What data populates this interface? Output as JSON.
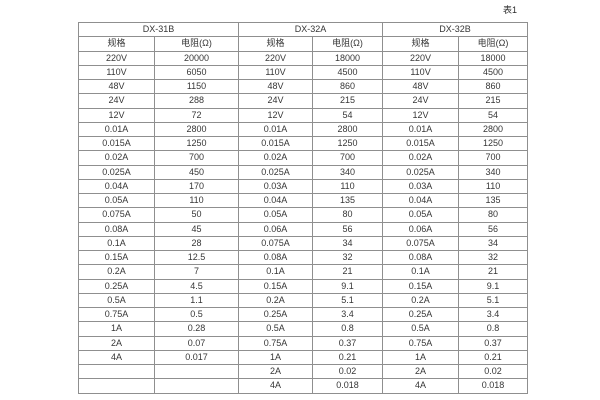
{
  "page": {
    "table_caption": "表1"
  },
  "table": {
    "groups": [
      {
        "name": "DX-31B",
        "columns": [
          "规格",
          "电阻(Ω)"
        ]
      },
      {
        "name": "DX-32A",
        "columns": [
          "规格",
          "电阻(Ω)"
        ]
      },
      {
        "name": "DX-32B",
        "columns": [
          "规格",
          "电阻(Ω)"
        ]
      }
    ],
    "rows": [
      [
        "220V",
        "20000",
        "220V",
        "18000",
        "220V",
        "18000"
      ],
      [
        "110V",
        "6050",
        "110V",
        "4500",
        "110V",
        "4500"
      ],
      [
        "48V",
        "1150",
        "48V",
        "860",
        "48V",
        "860"
      ],
      [
        "24V",
        "288",
        "24V",
        "215",
        "24V",
        "215"
      ],
      [
        "12V",
        "72",
        "12V",
        "54",
        "12V",
        "54"
      ],
      [
        "0.01A",
        "2800",
        "0.01A",
        "2800",
        "0.01A",
        "2800"
      ],
      [
        "0.015A",
        "1250",
        "0.015A",
        "1250",
        "0.015A",
        "1250"
      ],
      [
        "0.02A",
        "700",
        "0.02A",
        "700",
        "0.02A",
        "700"
      ],
      [
        "0.025A",
        "450",
        "0.025A",
        "340",
        "0.025A",
        "340"
      ],
      [
        "0.04A",
        "170",
        "0.03A",
        "110",
        "0.03A",
        "110"
      ],
      [
        "0.05A",
        "110",
        "0.04A",
        "135",
        "0.04A",
        "135"
      ],
      [
        "0.075A",
        "50",
        "0.05A",
        "80",
        "0.05A",
        "80"
      ],
      [
        "0.08A",
        "45",
        "0.06A",
        "56",
        "0.06A",
        "56"
      ],
      [
        "0.1A",
        "28",
        "0.075A",
        "34",
        "0.075A",
        "34"
      ],
      [
        "0.15A",
        "12.5",
        "0.08A",
        "32",
        "0.08A",
        "32"
      ],
      [
        "0.2A",
        "7",
        "0.1A",
        "21",
        "0.1A",
        "21"
      ],
      [
        "0.25A",
        "4.5",
        "0.15A",
        "9.1",
        "0.15A",
        "9.1"
      ],
      [
        "0.5A",
        "1.1",
        "0.2A",
        "5.1",
        "0.2A",
        "5.1"
      ],
      [
        "0.75A",
        "0.5",
        "0.25A",
        "3.4",
        "0.25A",
        "3.4"
      ],
      [
        "1A",
        "0.28",
        "0.5A",
        "0.8",
        "0.5A",
        "0.8"
      ],
      [
        "2A",
        "0.07",
        "0.75A",
        "0.37",
        "0.75A",
        "0.37"
      ],
      [
        "4A",
        "0.017",
        "1A",
        "0.21",
        "1A",
        "0.21"
      ],
      [
        "",
        "",
        "2A",
        "0.02",
        "2A",
        "0.02"
      ],
      [
        "",
        "",
        "4A",
        "0.018",
        "4A",
        "0.018"
      ]
    ]
  }
}
